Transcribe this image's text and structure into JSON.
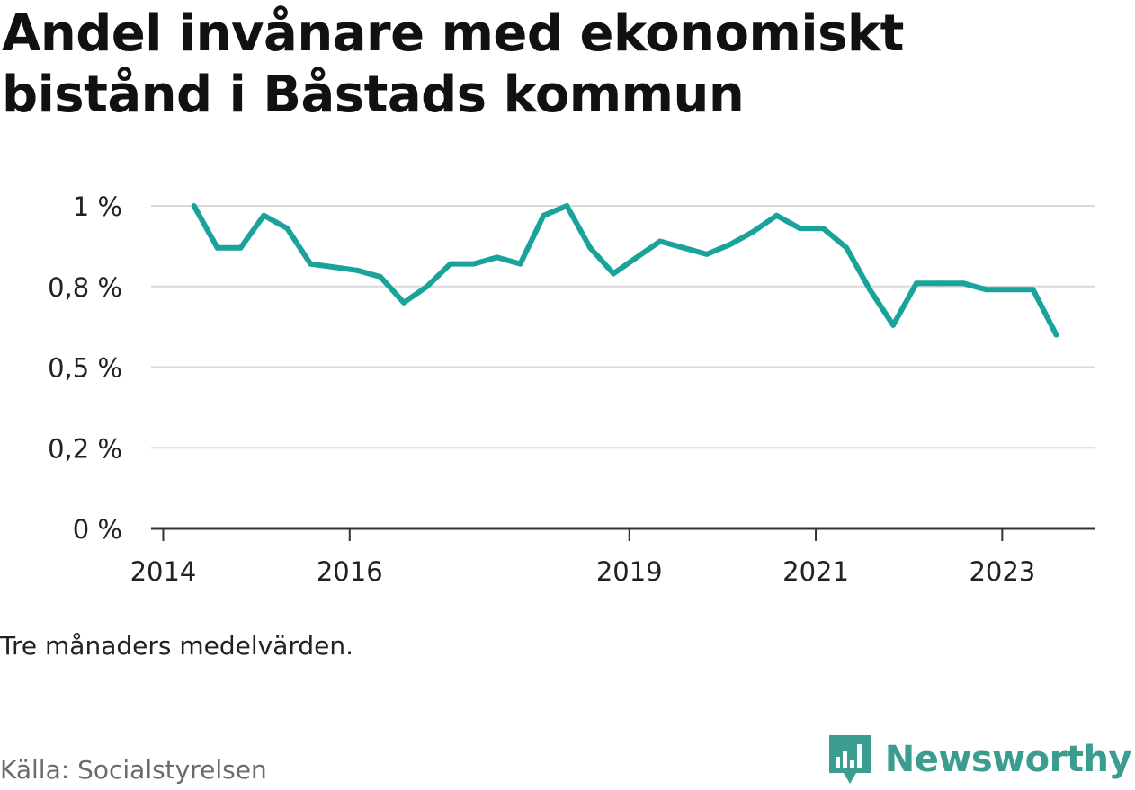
{
  "title": "Andel invånare med ekonomiskt bistånd i Båstads kommun",
  "note": "Tre månaders medelvärden.",
  "source": "Källa: Socialstyrelsen",
  "brand": {
    "name": "Newsworthy",
    "icon": "newsworthy-bar-logo-icon",
    "color": "#3a9d8f"
  },
  "chart_data": {
    "type": "line",
    "x_unit": "year",
    "x": [
      2014.33,
      2014.58,
      2014.83,
      2015.08,
      2015.33,
      2015.58,
      2015.83,
      2016.08,
      2016.33,
      2016.58,
      2016.83,
      2017.08,
      2017.33,
      2017.58,
      2017.83,
      2018.08,
      2018.33,
      2018.58,
      2018.83,
      2019.08,
      2019.33,
      2019.58,
      2019.83,
      2020.08,
      2020.33,
      2020.58,
      2020.83,
      2021.08,
      2021.33,
      2021.58,
      2021.83,
      2022.08,
      2022.33,
      2022.58,
      2022.83,
      2023.08,
      2023.33,
      2023.58
    ],
    "series": [
      {
        "values": [
          1.0,
          0.87,
          0.87,
          0.97,
          0.93,
          0.82,
          0.81,
          0.8,
          0.78,
          0.7,
          0.75,
          0.82,
          0.82,
          0.84,
          0.82,
          0.97,
          1.0,
          0.87,
          0.79,
          0.84,
          0.89,
          0.87,
          0.85,
          0.88,
          0.92,
          0.97,
          0.93,
          0.93,
          0.87,
          0.74,
          0.63,
          0.76,
          0.76,
          0.76,
          0.74,
          0.74,
          0.74,
          0.6
        ]
      }
    ],
    "y_tick_values": [
      0,
      0.25,
      0.5,
      0.75,
      1.0
    ],
    "y_tick_labels": [
      "0 %",
      "0,2 %",
      "0,5 %",
      "0,8 %",
      "1 %"
    ],
    "x_tick_values": [
      2014,
      2016,
      2019,
      2021,
      2023
    ],
    "x_tick_labels": [
      "2014",
      "2016",
      "2019",
      "2021",
      "2023"
    ],
    "ylim": [
      0,
      1.0
    ],
    "xlim": [
      2013.87,
      2024.0
    ],
    "grid": true,
    "legend": "none",
    "line_color": "#1aa39a",
    "grid_color": "#d9d9d9",
    "axis_color": "#333333"
  }
}
